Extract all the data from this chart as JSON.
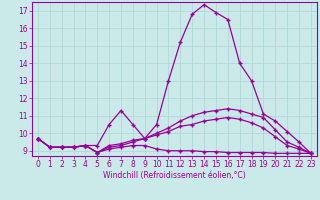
{
  "xlabel": "Windchill (Refroidissement éolien,°C)",
  "xlim": [
    -0.5,
    23.5
  ],
  "ylim": [
    8.7,
    17.5
  ],
  "yticks": [
    9,
    10,
    11,
    12,
    13,
    14,
    15,
    16,
    17
  ],
  "xticks": [
    0,
    1,
    2,
    3,
    4,
    5,
    6,
    7,
    8,
    9,
    10,
    11,
    12,
    13,
    14,
    15,
    16,
    17,
    18,
    19,
    20,
    21,
    22,
    23
  ],
  "bg_color": "#caeaea",
  "line_color": "#990099",
  "grid_color": "#b0d8d8",
  "lines": [
    [
      9.7,
      9.2,
      9.2,
      9.2,
      9.3,
      9.3,
      10.5,
      11.3,
      10.5,
      9.7,
      10.5,
      13.0,
      15.2,
      16.8,
      17.35,
      16.9,
      16.5,
      14.0,
      13.0,
      11.1,
      10.7,
      10.1,
      9.5,
      8.85
    ],
    [
      9.7,
      9.2,
      9.2,
      9.2,
      9.3,
      8.9,
      9.3,
      9.4,
      9.6,
      9.7,
      10.0,
      10.3,
      10.7,
      11.0,
      11.2,
      11.3,
      11.4,
      11.3,
      11.1,
      10.9,
      10.2,
      9.5,
      9.2,
      8.85
    ],
    [
      9.7,
      9.2,
      9.2,
      9.2,
      9.3,
      8.9,
      9.2,
      9.3,
      9.5,
      9.7,
      9.9,
      10.1,
      10.4,
      10.5,
      10.7,
      10.8,
      10.9,
      10.8,
      10.6,
      10.3,
      9.8,
      9.3,
      9.1,
      8.85
    ],
    [
      9.7,
      9.2,
      9.2,
      9.2,
      9.3,
      8.9,
      9.1,
      9.2,
      9.3,
      9.3,
      9.1,
      9.0,
      9.0,
      9.0,
      8.95,
      8.95,
      8.9,
      8.9,
      8.9,
      8.9,
      8.85,
      8.85,
      8.85,
      8.85
    ]
  ]
}
